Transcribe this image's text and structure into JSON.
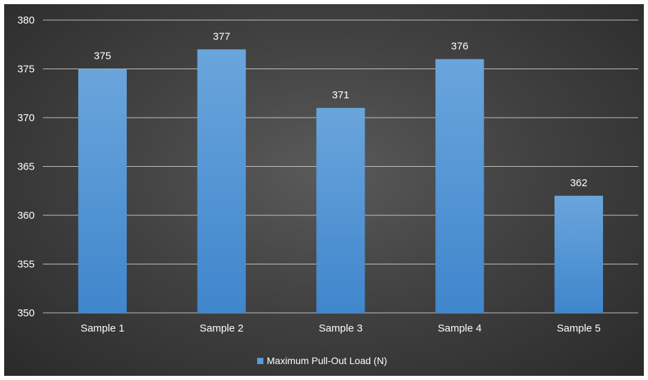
{
  "chart_data": {
    "type": "bar",
    "categories": [
      "Sample 1",
      "Sample 2",
      "Sample 3",
      "Sample 4",
      "Sample 5"
    ],
    "series": [
      {
        "name": "Maximum Pull-Out Load (N)",
        "values": [
          375,
          377,
          371,
          376,
          362
        ],
        "color": "#5b9bd5"
      }
    ],
    "data_labels": [
      "375",
      "377",
      "371",
      "376",
      "362"
    ],
    "ylim": [
      350,
      380
    ],
    "yticks": [
      350,
      355,
      360,
      365,
      370,
      375,
      380
    ],
    "title": "",
    "xlabel": "",
    "ylabel": "",
    "grid": true,
    "legend_position": "bottom",
    "background": "#404040",
    "text_color": "#ffffff"
  }
}
